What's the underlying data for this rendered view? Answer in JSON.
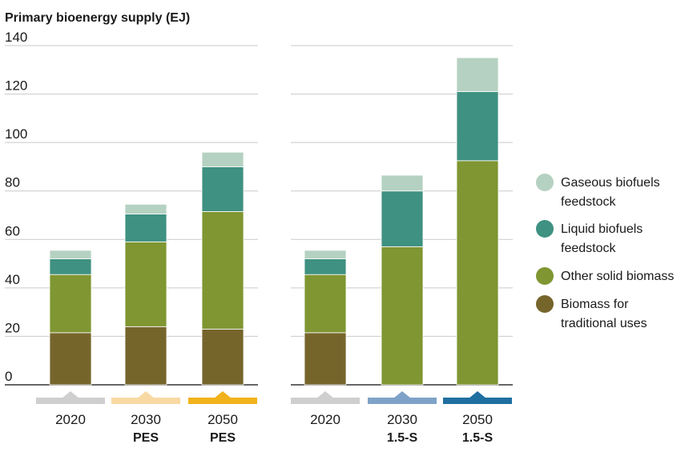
{
  "chart_data": {
    "type": "bar",
    "stacked": true,
    "title": "Primary bioenergy supply (EJ)",
    "ylim": [
      0,
      140
    ],
    "yticks": [
      0,
      20,
      40,
      60,
      80,
      100,
      120,
      140
    ],
    "grid": true,
    "legend_position": "right",
    "colors": {
      "traditional": "#76652b",
      "solid": "#7f9632",
      "liquid": "#3f9181",
      "gaseous": "#b5d1c1"
    },
    "series": [
      {
        "key": "gaseous",
        "name": "Gaseous biofuels feedstock",
        "legend_lines": [
          "Gaseous biofuels",
          "feedstock"
        ]
      },
      {
        "key": "liquid",
        "name": "Liquid biofuels feedstock",
        "legend_lines": [
          "Liquid biofuels",
          "feedstock"
        ]
      },
      {
        "key": "solid",
        "name": "Other solid biomass",
        "legend_lines": [
          "Other solid biomass"
        ]
      },
      {
        "key": "traditional",
        "name": "Biomass for traditional uses",
        "legend_lines": [
          "Biomass for",
          "traditional uses"
        ]
      }
    ],
    "panels": [
      {
        "bars": [
          {
            "year": "2020",
            "scenario": "",
            "marker_color": "#cfcfcf",
            "traditional": 21.5,
            "solid": 24,
            "liquid": 6.5,
            "gaseous": 3.5
          },
          {
            "year": "2030",
            "scenario": "PES",
            "marker_color": "#f9d9a3",
            "traditional": 24,
            "solid": 35,
            "liquid": 11.5,
            "gaseous": 4
          },
          {
            "year": "2050",
            "scenario": "PES",
            "marker_color": "#f2b21b",
            "traditional": 23,
            "solid": 48.5,
            "liquid": 18.5,
            "gaseous": 6
          }
        ]
      },
      {
        "bars": [
          {
            "year": "2020",
            "scenario": "",
            "marker_color": "#cfcfcf",
            "traditional": 21.5,
            "solid": 24,
            "liquid": 6.5,
            "gaseous": 3.5
          },
          {
            "year": "2030",
            "scenario": "1.5-S",
            "marker_color": "#7ea2c8",
            "traditional": 0,
            "solid": 57,
            "liquid": 23,
            "gaseous": 6.5
          },
          {
            "year": "2050",
            "scenario": "1.5-S",
            "marker_color": "#1f6fa1",
            "traditional": 0,
            "solid": 92.5,
            "liquid": 28.5,
            "gaseous": 14
          }
        ]
      }
    ]
  }
}
